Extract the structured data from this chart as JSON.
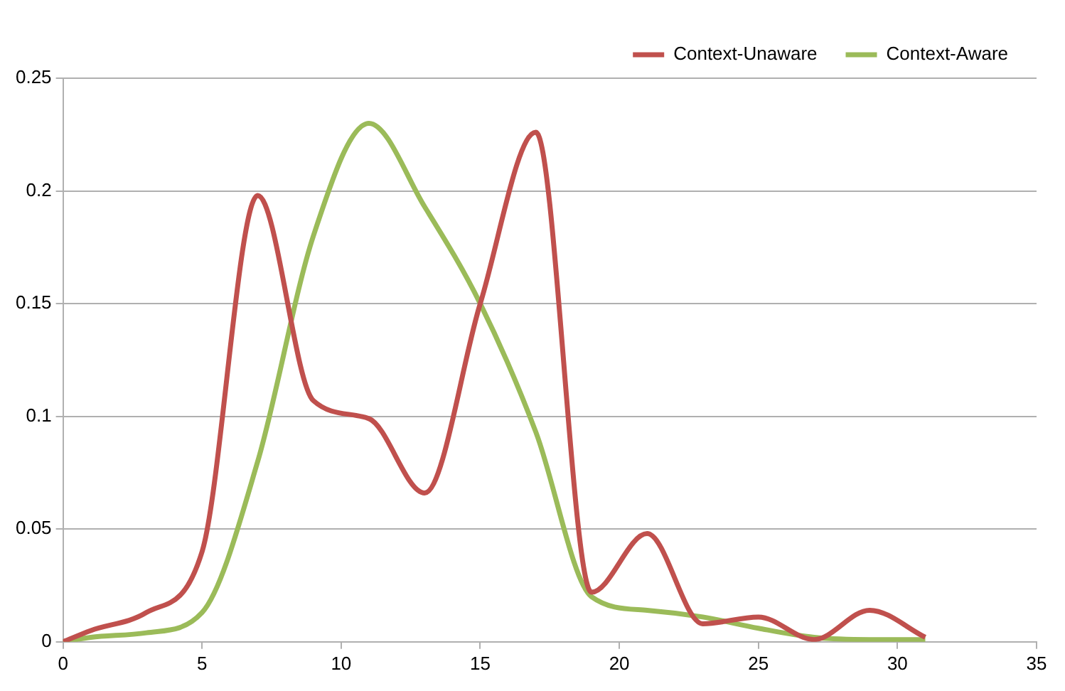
{
  "chart_data": {
    "type": "line",
    "x": [
      0,
      1,
      3,
      5,
      7,
      9,
      11,
      13,
      15,
      17,
      19,
      21,
      23,
      25,
      27,
      29,
      31
    ],
    "series": [
      {
        "name": "Context-Unaware",
        "color": "#c0504d",
        "values": [
          0,
          0.005,
          0.013,
          0.04,
          0.198,
          0.107,
          0.099,
          0.066,
          0.15,
          0.226,
          0.022,
          0.048,
          0.008,
          0.011,
          0.001,
          0.014,
          0.002
        ]
      },
      {
        "name": "Context-Aware",
        "color": "#9bbb59",
        "values": [
          0,
          0.002,
          0.004,
          0.013,
          0.08,
          0.18,
          0.23,
          0.193,
          0.15,
          0.093,
          0.02,
          0.014,
          0.011,
          0.006,
          0.002,
          0.001,
          0.001
        ]
      }
    ],
    "xlim": [
      0,
      35
    ],
    "xticks": [
      0,
      5,
      10,
      15,
      20,
      25,
      30,
      35
    ],
    "ylim": [
      0,
      0.25
    ],
    "yticks": [
      0,
      0.05,
      0.1,
      0.15,
      0.2,
      0.25
    ],
    "grid": "y",
    "legend": "top right",
    "marker": "none",
    "line_style": "solid"
  }
}
